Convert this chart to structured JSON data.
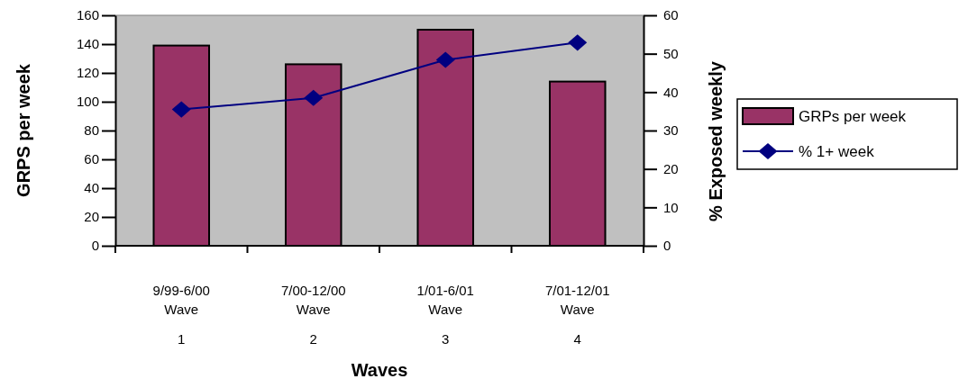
{
  "chart_data": {
    "type": "bar",
    "categories": [
      "9/99-6/00\nWave\n1",
      "7/00-12/00\nWave\n2",
      "1/01-6/01\nWave\n3",
      "7/01-12/01\nWave\n4"
    ],
    "series": [
      {
        "name": "GRPs per week",
        "color": "#993366",
        "values": [
          139,
          126,
          150,
          114
        ]
      },
      {
        "name": "% 1+ week",
        "type": "line",
        "axis": "y2",
        "color": "#000080",
        "values": [
          35.5,
          38.5,
          48.4,
          52.9
        ]
      }
    ],
    "xlabel": "Waves",
    "ylabel": "GRPS per week",
    "y2label": "% Exposed weekly",
    "ylim": [
      0,
      160
    ],
    "yticks": [
      0,
      20,
      40,
      60,
      80,
      100,
      120,
      140,
      160
    ],
    "y2lim": [
      0,
      60
    ],
    "y2ticks": [
      0,
      10,
      20,
      30,
      40,
      50,
      60
    ],
    "marker": "diamond",
    "legend": "right",
    "grid": false
  }
}
